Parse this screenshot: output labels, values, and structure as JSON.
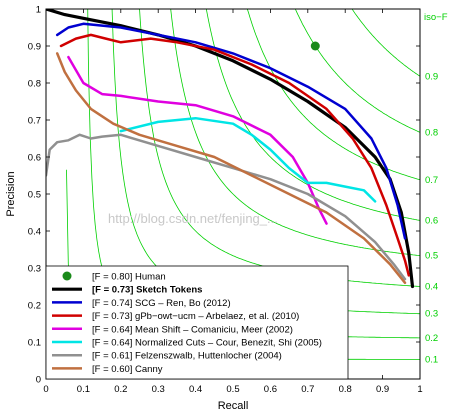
{
  "chart_data": {
    "type": "line",
    "xlabel": "Recall",
    "ylabel": "Precision",
    "xlim": [
      0,
      1
    ],
    "ylim": [
      0,
      1
    ],
    "xticks": [
      "0",
      "0.1",
      "0.2",
      "0.3",
      "0.4",
      "0.5",
      "0.6",
      "0.7",
      "0.8",
      "0.9",
      "1"
    ],
    "yticks": [
      "0",
      "0.1",
      "0.2",
      "0.3",
      "0.4",
      "0.5",
      "0.6",
      "0.7",
      "0.8",
      "0.9",
      "1"
    ],
    "iso_f": {
      "label": "iso−F",
      "color": "#00d000",
      "values": [
        0.1,
        0.2,
        0.3,
        0.4,
        0.5,
        0.6,
        0.7,
        0.8,
        0.9
      ],
      "tick_labels": [
        "0.1",
        "0.2",
        "0.3",
        "0.4",
        "0.5",
        "0.6",
        "0.7",
        "0.8",
        "0.9"
      ]
    },
    "watermark": "http://blog.csdn.net/fenjing_...",
    "human_point": {
      "label": "[F = 0.80] Human",
      "recall": 0.72,
      "precision": 0.9,
      "color": "#1a8a1a"
    },
    "series": [
      {
        "name": "[F = 0.73] Sketch Tokens",
        "bold": true,
        "color": "#000000",
        "width": 3.2,
        "points": [
          [
            0.0,
            1.0
          ],
          [
            0.05,
            0.985
          ],
          [
            0.1,
            0.975
          ],
          [
            0.2,
            0.955
          ],
          [
            0.3,
            0.93
          ],
          [
            0.4,
            0.9
          ],
          [
            0.5,
            0.86
          ],
          [
            0.6,
            0.81
          ],
          [
            0.7,
            0.75
          ],
          [
            0.8,
            0.68
          ],
          [
            0.88,
            0.6
          ],
          [
            0.92,
            0.54
          ],
          [
            0.95,
            0.45
          ],
          [
            0.97,
            0.34
          ],
          [
            0.98,
            0.25
          ]
        ]
      },
      {
        "name": "[F = 0.74] SCG – Ren, Bo (2012)",
        "bold": false,
        "color": "#0000d0",
        "width": 2.5,
        "points": [
          [
            0.03,
            0.93
          ],
          [
            0.06,
            0.95
          ],
          [
            0.1,
            0.96
          ],
          [
            0.2,
            0.95
          ],
          [
            0.3,
            0.93
          ],
          [
            0.4,
            0.91
          ],
          [
            0.5,
            0.88
          ],
          [
            0.6,
            0.84
          ],
          [
            0.7,
            0.79
          ],
          [
            0.8,
            0.73
          ],
          [
            0.87,
            0.65
          ],
          [
            0.91,
            0.57
          ],
          [
            0.94,
            0.47
          ],
          [
            0.96,
            0.38
          ]
        ]
      },
      {
        "name": "[F = 0.73] gPb−owt−ucm – Arbelaez, et al. (2010)",
        "bold": false,
        "color": "#d00000",
        "width": 2.5,
        "points": [
          [
            0.04,
            0.9
          ],
          [
            0.08,
            0.92
          ],
          [
            0.12,
            0.93
          ],
          [
            0.16,
            0.92
          ],
          [
            0.2,
            0.91
          ],
          [
            0.28,
            0.92
          ],
          [
            0.35,
            0.91
          ],
          [
            0.45,
            0.89
          ],
          [
            0.55,
            0.85
          ],
          [
            0.65,
            0.8
          ],
          [
            0.75,
            0.73
          ],
          [
            0.82,
            0.65
          ],
          [
            0.87,
            0.57
          ],
          [
            0.91,
            0.47
          ],
          [
            0.94,
            0.38
          ],
          [
            0.96,
            0.32
          ],
          [
            0.97,
            0.28
          ]
        ]
      },
      {
        "name": "[F = 0.64] Mean Shift – Comaniciu, Meer (2002)",
        "bold": false,
        "color": "#e000e0",
        "width": 2.5,
        "points": [
          [
            0.06,
            0.87
          ],
          [
            0.1,
            0.8
          ],
          [
            0.15,
            0.77
          ],
          [
            0.2,
            0.765
          ],
          [
            0.3,
            0.75
          ],
          [
            0.4,
            0.74
          ],
          [
            0.5,
            0.71
          ],
          [
            0.6,
            0.66
          ],
          [
            0.66,
            0.6
          ],
          [
            0.7,
            0.53
          ],
          [
            0.73,
            0.46
          ],
          [
            0.75,
            0.42
          ]
        ]
      },
      {
        "name": "[F = 0.64] Normalized Cuts – Cour, Benezit, Shi (2005)",
        "bold": false,
        "color": "#00e5e5",
        "width": 2.5,
        "points": [
          [
            0.2,
            0.67
          ],
          [
            0.3,
            0.695
          ],
          [
            0.4,
            0.705
          ],
          [
            0.5,
            0.69
          ],
          [
            0.55,
            0.66
          ],
          [
            0.6,
            0.62
          ],
          [
            0.65,
            0.57
          ],
          [
            0.7,
            0.53
          ],
          [
            0.75,
            0.53
          ],
          [
            0.8,
            0.52
          ],
          [
            0.85,
            0.51
          ],
          [
            0.88,
            0.48
          ]
        ]
      },
      {
        "name": "[F = 0.61] Felzenszwalb, Huttenlocher (2004)",
        "bold": false,
        "color": "#909090",
        "width": 2.5,
        "points": [
          [
            0.0,
            0.55
          ],
          [
            0.01,
            0.62
          ],
          [
            0.03,
            0.64
          ],
          [
            0.06,
            0.645
          ],
          [
            0.09,
            0.66
          ],
          [
            0.12,
            0.65
          ],
          [
            0.15,
            0.655
          ],
          [
            0.2,
            0.66
          ],
          [
            0.3,
            0.63
          ],
          [
            0.4,
            0.6
          ],
          [
            0.5,
            0.57
          ],
          [
            0.6,
            0.54
          ],
          [
            0.7,
            0.5
          ],
          [
            0.8,
            0.44
          ],
          [
            0.88,
            0.37
          ],
          [
            0.93,
            0.31
          ],
          [
            0.96,
            0.27
          ]
        ]
      },
      {
        "name": "[F = 0.60] Canny",
        "bold": false,
        "color": "#c07040",
        "width": 2.5,
        "points": [
          [
            0.03,
            0.88
          ],
          [
            0.05,
            0.83
          ],
          [
            0.08,
            0.78
          ],
          [
            0.12,
            0.73
          ],
          [
            0.18,
            0.69
          ],
          [
            0.25,
            0.66
          ],
          [
            0.35,
            0.63
          ],
          [
            0.45,
            0.6
          ],
          [
            0.55,
            0.55
          ],
          [
            0.65,
            0.5
          ],
          [
            0.75,
            0.45
          ],
          [
            0.85,
            0.38
          ],
          [
            0.92,
            0.31
          ],
          [
            0.96,
            0.26
          ]
        ]
      }
    ]
  }
}
